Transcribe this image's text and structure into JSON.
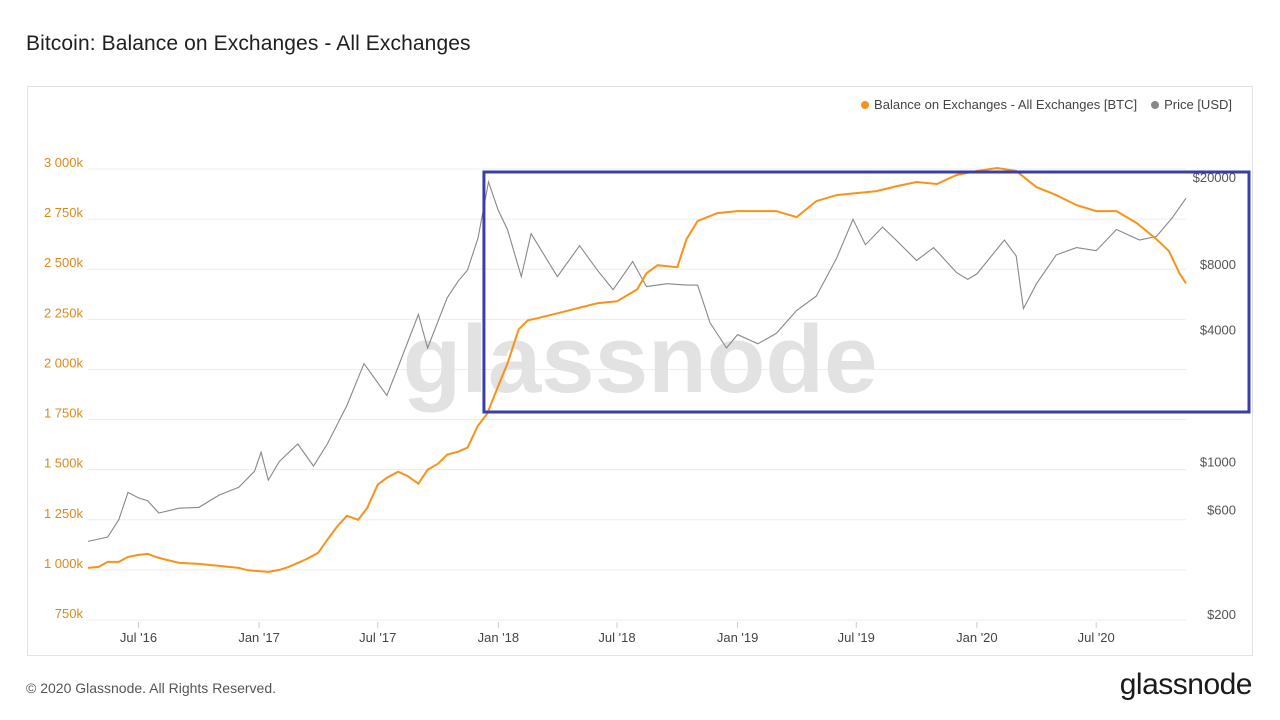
{
  "title": "Bitcoin: Balance on Exchanges - All Exchanges",
  "footer": "© 2020 Glassnode. All Rights Reserved.",
  "brand": "glassnode",
  "watermark": "glassnode",
  "colors": {
    "balance": "#f7931a",
    "price": "#888888",
    "highlight": "#3a3fa8",
    "grid": "#ececec",
    "leftAxis": "#d98a1e",
    "rightAxis": "#555555"
  },
  "legend": [
    {
      "label": "Balance on Exchanges - All Exchanges [BTC]",
      "color": "#f7931a"
    },
    {
      "label": "Price [USD]",
      "color": "#888888"
    }
  ],
  "chart_data": {
    "type": "line",
    "x_range": [
      "2016-04-15",
      "2020-11-15"
    ],
    "y_left": {
      "ticks": [
        750000,
        1000000,
        1250000,
        1500000,
        1750000,
        2000000,
        2250000,
        2500000,
        2750000,
        3000000
      ],
      "tick_labels": [
        "750k",
        "1 000k",
        "1 250k",
        "1 500k",
        "1 750k",
        "2 000k",
        "2 250k",
        "2 500k",
        "2 750k",
        "3 000k"
      ],
      "range": [
        750000,
        3000000
      ]
    },
    "y_right": {
      "scale": "log",
      "ticks": [
        200,
        600,
        1000,
        4000,
        8000,
        20000
      ],
      "tick_labels": [
        "$200",
        "$600",
        "$1000",
        "$4000",
        "$8000",
        "$20000"
      ],
      "range": [
        200,
        20000
      ]
    },
    "x_ticks": [
      {
        "date": "2016-07-01",
        "label": "Jul '16"
      },
      {
        "date": "2017-01-01",
        "label": "Jan '17"
      },
      {
        "date": "2017-07-01",
        "label": "Jul '17"
      },
      {
        "date": "2018-01-01",
        "label": "Jan '18"
      },
      {
        "date": "2018-07-01",
        "label": "Jul '18"
      },
      {
        "date": "2019-01-01",
        "label": "Jan '19"
      },
      {
        "date": "2019-07-01",
        "label": "Jul '19"
      },
      {
        "date": "2020-01-01",
        "label": "Jan '20"
      },
      {
        "date": "2020-07-01",
        "label": "Jul '20"
      }
    ],
    "grid": true,
    "legend_position": "top-right",
    "highlight_box": {
      "x_range": [
        "2017-12-10",
        "2020-11-30"
      ]
    },
    "series": [
      {
        "name": "Balance on Exchanges - All Exchanges [BTC]",
        "axis": "left",
        "points": [
          [
            "2016-04-15",
            980000
          ],
          [
            "2016-05-01",
            985000
          ],
          [
            "2016-05-15",
            1010000
          ],
          [
            "2016-06-01",
            1010000
          ],
          [
            "2016-06-15",
            1035000
          ],
          [
            "2016-07-01",
            1045000
          ],
          [
            "2016-07-15",
            1050000
          ],
          [
            "2016-08-01",
            1030000
          ],
          [
            "2016-09-01",
            1005000
          ],
          [
            "2016-10-01",
            1000000
          ],
          [
            "2016-11-01",
            990000
          ],
          [
            "2016-12-01",
            980000
          ],
          [
            "2016-12-15",
            968000
          ],
          [
            "2017-01-15",
            960000
          ],
          [
            "2017-02-01",
            970000
          ],
          [
            "2017-02-15",
            985000
          ],
          [
            "2017-03-01",
            1005000
          ],
          [
            "2017-03-15",
            1025000
          ],
          [
            "2017-04-01",
            1055000
          ],
          [
            "2017-04-15",
            1120000
          ],
          [
            "2017-05-01",
            1190000
          ],
          [
            "2017-05-15",
            1240000
          ],
          [
            "2017-06-01",
            1220000
          ],
          [
            "2017-06-15",
            1280000
          ],
          [
            "2017-07-01",
            1395000
          ],
          [
            "2017-07-15",
            1430000
          ],
          [
            "2017-08-01",
            1460000
          ],
          [
            "2017-08-15",
            1440000
          ],
          [
            "2017-09-01",
            1400000
          ],
          [
            "2017-09-15",
            1470000
          ],
          [
            "2017-10-01",
            1500000
          ],
          [
            "2017-10-15",
            1545000
          ],
          [
            "2017-11-01",
            1560000
          ],
          [
            "2017-11-15",
            1580000
          ],
          [
            "2017-12-01",
            1690000
          ],
          [
            "2017-12-15",
            1750000
          ],
          [
            "2018-01-01",
            1890000
          ],
          [
            "2018-01-15",
            2000000
          ],
          [
            "2018-02-01",
            2170000
          ],
          [
            "2018-02-15",
            2215000
          ],
          [
            "2018-03-01",
            2225000
          ],
          [
            "2018-04-01",
            2250000
          ],
          [
            "2018-05-01",
            2275000
          ],
          [
            "2018-06-01",
            2300000
          ],
          [
            "2018-07-01",
            2310000
          ],
          [
            "2018-08-01",
            2370000
          ],
          [
            "2018-08-15",
            2450000
          ],
          [
            "2018-09-01",
            2490000
          ],
          [
            "2018-10-01",
            2480000
          ],
          [
            "2018-10-15",
            2620000
          ],
          [
            "2018-11-01",
            2710000
          ],
          [
            "2018-12-01",
            2750000
          ],
          [
            "2019-01-01",
            2760000
          ],
          [
            "2019-02-01",
            2760000
          ],
          [
            "2019-03-01",
            2760000
          ],
          [
            "2019-04-01",
            2730000
          ],
          [
            "2019-05-01",
            2810000
          ],
          [
            "2019-06-01",
            2840000
          ],
          [
            "2019-07-01",
            2850000
          ],
          [
            "2019-08-01",
            2860000
          ],
          [
            "2019-09-01",
            2885000
          ],
          [
            "2019-10-01",
            2905000
          ],
          [
            "2019-11-01",
            2895000
          ],
          [
            "2019-12-01",
            2940000
          ],
          [
            "2020-01-01",
            2960000
          ],
          [
            "2020-02-01",
            2975000
          ],
          [
            "2020-03-01",
            2960000
          ],
          [
            "2020-04-01",
            2880000
          ],
          [
            "2020-05-01",
            2840000
          ],
          [
            "2020-06-01",
            2790000
          ],
          [
            "2020-07-01",
            2760000
          ],
          [
            "2020-08-01",
            2760000
          ],
          [
            "2020-09-01",
            2700000
          ],
          [
            "2020-10-01",
            2620000
          ],
          [
            "2020-10-20",
            2560000
          ],
          [
            "2020-11-05",
            2450000
          ],
          [
            "2020-11-15",
            2400000
          ]
        ]
      },
      {
        "name": "Price [USD]",
        "axis": "right",
        "points": [
          [
            "2016-04-15",
            430
          ],
          [
            "2016-05-15",
            450
          ],
          [
            "2016-06-01",
            540
          ],
          [
            "2016-06-15",
            720
          ],
          [
            "2016-07-01",
            680
          ],
          [
            "2016-07-15",
            660
          ],
          [
            "2016-08-01",
            580
          ],
          [
            "2016-09-01",
            610
          ],
          [
            "2016-10-01",
            615
          ],
          [
            "2016-11-01",
            700
          ],
          [
            "2016-12-01",
            760
          ],
          [
            "2016-12-25",
            900
          ],
          [
            "2017-01-04",
            1100
          ],
          [
            "2017-01-15",
            820
          ],
          [
            "2017-02-01",
            1000
          ],
          [
            "2017-03-01",
            1200
          ],
          [
            "2017-03-25",
            950
          ],
          [
            "2017-04-15",
            1200
          ],
          [
            "2017-05-15",
            1800
          ],
          [
            "2017-06-10",
            2800
          ],
          [
            "2017-07-15",
            2000
          ],
          [
            "2017-08-01",
            2700
          ],
          [
            "2017-09-01",
            4700
          ],
          [
            "2017-09-15",
            3300
          ],
          [
            "2017-10-15",
            5600
          ],
          [
            "2017-11-01",
            6700
          ],
          [
            "2017-11-15",
            7500
          ],
          [
            "2017-12-01",
            10500
          ],
          [
            "2017-12-17",
            19000
          ],
          [
            "2018-01-01",
            14000
          ],
          [
            "2018-01-15",
            11500
          ],
          [
            "2018-02-05",
            7000
          ],
          [
            "2018-02-20",
            11000
          ],
          [
            "2018-04-01",
            7000
          ],
          [
            "2018-05-05",
            9700
          ],
          [
            "2018-06-01",
            7500
          ],
          [
            "2018-06-25",
            6100
          ],
          [
            "2018-07-25",
            8200
          ],
          [
            "2018-08-15",
            6300
          ],
          [
            "2018-09-15",
            6500
          ],
          [
            "2018-10-15",
            6400
          ],
          [
            "2018-11-01",
            6400
          ],
          [
            "2018-11-20",
            4300
          ],
          [
            "2018-12-15",
            3300
          ],
          [
            "2019-01-01",
            3800
          ],
          [
            "2019-02-01",
            3450
          ],
          [
            "2019-03-01",
            3850
          ],
          [
            "2019-04-01",
            4900
          ],
          [
            "2019-05-01",
            5700
          ],
          [
            "2019-06-01",
            8500
          ],
          [
            "2019-06-26",
            12800
          ],
          [
            "2019-07-15",
            9800
          ],
          [
            "2019-08-10",
            11800
          ],
          [
            "2019-09-01",
            10200
          ],
          [
            "2019-10-01",
            8300
          ],
          [
            "2019-10-27",
            9500
          ],
          [
            "2019-12-01",
            7300
          ],
          [
            "2019-12-18",
            6800
          ],
          [
            "2020-01-01",
            7200
          ],
          [
            "2020-02-12",
            10300
          ],
          [
            "2020-03-01",
            8700
          ],
          [
            "2020-03-12",
            5000
          ],
          [
            "2020-04-01",
            6500
          ],
          [
            "2020-05-01",
            8800
          ],
          [
            "2020-06-01",
            9500
          ],
          [
            "2020-07-01",
            9200
          ],
          [
            "2020-08-01",
            11500
          ],
          [
            "2020-09-05",
            10300
          ],
          [
            "2020-10-01",
            10700
          ],
          [
            "2020-10-25",
            13000
          ],
          [
            "2020-11-15",
            16000
          ]
        ]
      }
    ]
  }
}
